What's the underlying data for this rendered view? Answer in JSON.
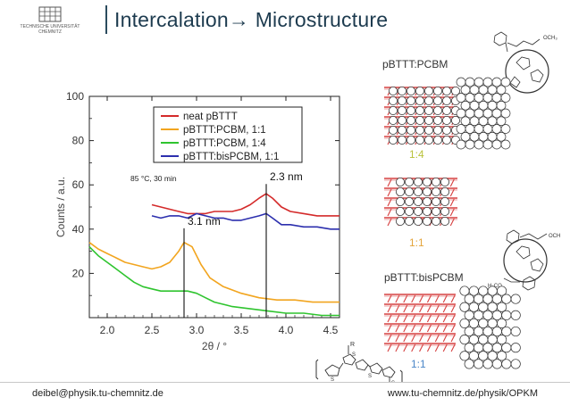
{
  "header": {
    "logo_text_line1": "TECHNISCHE UNIVERSITÄT",
    "logo_text_line2": "CHEMNITZ",
    "title": "Intercalation→ Microstructure"
  },
  "footer": {
    "email": "deibel@physik.tu-chemnitz.de",
    "url": "www.tu-chemnitz.de/physik/OPKM"
  },
  "panels": {
    "pcbm_label": "pBTTT:PCBM",
    "ratio_top": "1:4",
    "ratio_mid": "1:1",
    "bispcbm_label": "pBTTT:bisPCBM",
    "ratio_bottom": "1:1",
    "och3": "OCH₃",
    "och3_b": "OCH",
    "h3co": "H₃CO",
    "polymer_r": "R",
    "polymer_n": "n",
    "polymer_s": "S"
  },
  "chart_data": {
    "type": "line",
    "xlabel": "2θ / °",
    "ylabel": "Counts / a.u.",
    "xlim": [
      1.8,
      4.6
    ],
    "ylim": [
      0,
      100
    ],
    "xticks": [
      "2.0",
      "2.5",
      "3.0",
      "3.5",
      "4.0",
      "4.5"
    ],
    "yticks": [
      "20",
      "40",
      "60",
      "80",
      "100"
    ],
    "annotation": "85 °C, 30 min",
    "peak_labels": [
      {
        "text": "2.3 nm",
        "x": 3.78
      },
      {
        "text": "3.1 nm",
        "x": 2.86
      }
    ],
    "legend_position": "top-right",
    "series": [
      {
        "name": "neat pBTTT",
        "color": "#d42a2a",
        "x": [
          2.5,
          2.6,
          2.7,
          2.8,
          2.9,
          3.0,
          3.1,
          3.2,
          3.3,
          3.4,
          3.5,
          3.6,
          3.7,
          3.78,
          3.85,
          3.95,
          4.05,
          4.2,
          4.35,
          4.5,
          4.6
        ],
        "y": [
          51,
          50,
          49,
          48,
          47,
          47,
          47,
          48,
          48,
          48,
          49,
          51,
          54,
          56,
          54,
          50,
          48,
          47,
          46,
          46,
          46
        ]
      },
      {
        "name": "pBTTT:PCBM, 1:1",
        "color": "#f2a51f",
        "x": [
          1.8,
          1.9,
          2.0,
          2.1,
          2.2,
          2.3,
          2.4,
          2.5,
          2.6,
          2.7,
          2.8,
          2.86,
          2.95,
          3.05,
          3.15,
          3.3,
          3.5,
          3.7,
          3.9,
          4.1,
          4.3,
          4.6
        ],
        "y": [
          34,
          31,
          29,
          27,
          25,
          24,
          23,
          22,
          23,
          25,
          30,
          34,
          32,
          24,
          18,
          14,
          11,
          9,
          8,
          8,
          7,
          7
        ]
      },
      {
        "name": "pBTTT:PCBM, 1:4",
        "color": "#2fc42f",
        "x": [
          1.8,
          1.9,
          2.0,
          2.1,
          2.2,
          2.3,
          2.4,
          2.5,
          2.6,
          2.7,
          2.8,
          2.9,
          3.0,
          3.1,
          3.2,
          3.4,
          3.6,
          3.8,
          4.0,
          4.2,
          4.4,
          4.6
        ],
        "y": [
          32,
          28,
          25,
          22,
          19,
          16,
          14,
          13,
          12,
          12,
          12,
          12,
          11,
          9,
          7,
          5,
          4,
          3,
          2,
          2,
          1,
          1
        ]
      },
      {
        "name": "pBTTT:bisPCBM, 1:1",
        "color": "#2c2fae",
        "x": [
          2.5,
          2.6,
          2.7,
          2.8,
          2.9,
          3.0,
          3.1,
          3.2,
          3.3,
          3.4,
          3.5,
          3.6,
          3.7,
          3.78,
          3.85,
          3.95,
          4.05,
          4.2,
          4.35,
          4.5,
          4.6
        ],
        "y": [
          46,
          45,
          46,
          46,
          45,
          47,
          46,
          45,
          45,
          44,
          44,
          45,
          46,
          47,
          45,
          42,
          42,
          41,
          41,
          40,
          40
        ]
      }
    ]
  }
}
